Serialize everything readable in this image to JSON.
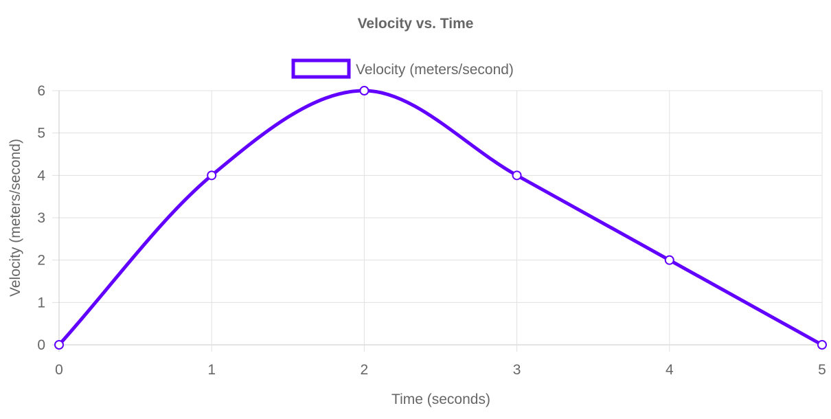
{
  "chart_data": {
    "type": "line",
    "title": "Velocity vs. Time",
    "xlabel": "Time (seconds)",
    "ylabel": "Velocity (meters/second)",
    "x": [
      0,
      1,
      2,
      3,
      4,
      5
    ],
    "xlim": [
      0,
      5
    ],
    "ylim": [
      0,
      6
    ],
    "y_ticks": [
      0,
      1,
      2,
      3,
      4,
      5,
      6
    ],
    "grid": true,
    "legend_position": "top",
    "series": [
      {
        "name": "Velocity (meters/second)",
        "values": [
          0,
          4,
          6,
          4,
          2,
          0
        ],
        "color": "#6200ff",
        "point_fill": "#ffffff"
      }
    ],
    "colors": {
      "text": "#666666",
      "grid": "#e0e0e0",
      "axis": "#c8c8c8"
    }
  }
}
